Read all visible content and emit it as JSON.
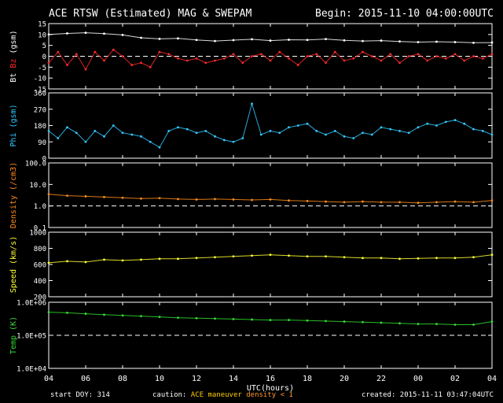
{
  "header": {
    "title": "ACE RTSW (Estimated) MAG & SWEPAM",
    "begin": "Begin: 2015-11-10 04:00:00UTC"
  },
  "footer": {
    "start_doy": "start DOY: 314",
    "caution_label": "caution:",
    "caution_maneuver": "ACE maneuver",
    "caution_density": "density < 1",
    "created": "created: 2015-11-11 03:47:04UTC"
  },
  "colors": {
    "bt": "#ffffff",
    "bz": "#ff2a2a",
    "phi": "#33c8ff",
    "density": "#ff8c1a",
    "speed": "#ffff33",
    "temp": "#33dd33",
    "frame": "#ffffff",
    "background": "#000000"
  },
  "chart_data": {
    "type": "scatter",
    "x": {
      "label": "UTC(hours)",
      "ticks": [
        "04",
        "06",
        "08",
        "10",
        "12",
        "14",
        "16",
        "18",
        "20",
        "22",
        "00",
        "02",
        "04"
      ],
      "range_hours": [
        0,
        24
      ]
    },
    "panels": [
      {
        "id": "mag",
        "ylabel_parts": [
          "Bt",
          "Bz",
          "(gsm)"
        ],
        "ylim": [
          -15,
          15
        ],
        "yticks": [
          "15",
          "10",
          "5",
          "0",
          "-5",
          "-10",
          "-15"
        ],
        "reference_line": 0,
        "series": [
          {
            "name": "Bt",
            "color_key": "bt",
            "points": [
              [
                0,
                10
              ],
              [
                1,
                10.5
              ],
              [
                2,
                10.8
              ],
              [
                3,
                10.4
              ],
              [
                4,
                9.8
              ],
              [
                5,
                8.5
              ],
              [
                6,
                8
              ],
              [
                7,
                8.2
              ],
              [
                8,
                7.5
              ],
              [
                9,
                7
              ],
              [
                10,
                7.4
              ],
              [
                11,
                7.8
              ],
              [
                12,
                7.2
              ],
              [
                13,
                7.6
              ],
              [
                14,
                7.5
              ],
              [
                15,
                7.9
              ],
              [
                16,
                7.3
              ],
              [
                17,
                7
              ],
              [
                18,
                7.2
              ],
              [
                19,
                6.8
              ],
              [
                20,
                6.5
              ],
              [
                21,
                6.7
              ],
              [
                22,
                6.5
              ],
              [
                23,
                6.2
              ],
              [
                24,
                6.3
              ]
            ]
          },
          {
            "name": "Bz",
            "color_key": "bz",
            "points": [
              [
                0,
                -3
              ],
              [
                0.5,
                2
              ],
              [
                1,
                -4
              ],
              [
                1.5,
                1
              ],
              [
                2,
                -6
              ],
              [
                2.5,
                2
              ],
              [
                3,
                -2
              ],
              [
                3.5,
                3
              ],
              [
                4,
                0
              ],
              [
                4.5,
                -4
              ],
              [
                5,
                -3
              ],
              [
                5.5,
                -5
              ],
              [
                6,
                2
              ],
              [
                6.5,
                1
              ],
              [
                7,
                -1
              ],
              [
                7.5,
                -2
              ],
              [
                8,
                -1
              ],
              [
                8.5,
                -3
              ],
              [
                9,
                -2
              ],
              [
                9.5,
                -1
              ],
              [
                10,
                1
              ],
              [
                10.5,
                -3
              ],
              [
                11,
                0
              ],
              [
                11.5,
                1
              ],
              [
                12,
                -2
              ],
              [
                12.5,
                2
              ],
              [
                13,
                -1
              ],
              [
                13.5,
                -4
              ],
              [
                14,
                0
              ],
              [
                14.5,
                1
              ],
              [
                15,
                -3
              ],
              [
                15.5,
                2
              ],
              [
                16,
                -2
              ],
              [
                16.5,
                -1
              ],
              [
                17,
                2
              ],
              [
                17.5,
                0
              ],
              [
                18,
                -2
              ],
              [
                18.5,
                1
              ],
              [
                19,
                -3
              ],
              [
                19.5,
                0
              ],
              [
                20,
                1
              ],
              [
                20.5,
                -2
              ],
              [
                21,
                0
              ],
              [
                21.5,
                -1
              ],
              [
                22,
                1
              ],
              [
                22.5,
                -2
              ],
              [
                23,
                0
              ],
              [
                23.5,
                -1
              ],
              [
                24,
                1
              ]
            ]
          }
        ]
      },
      {
        "id": "phi",
        "ylabel_parts": [
          "Phi (gsm)"
        ],
        "ylim": [
          0,
          360
        ],
        "yticks": [
          "360",
          "270",
          "180",
          "90",
          "0"
        ],
        "series": [
          {
            "name": "Phi",
            "color_key": "phi",
            "points": [
              [
                0,
                150
              ],
              [
                0.5,
                110
              ],
              [
                1,
                170
              ],
              [
                1.5,
                140
              ],
              [
                2,
                90
              ],
              [
                2.5,
                150
              ],
              [
                3,
                120
              ],
              [
                3.5,
                180
              ],
              [
                4,
                140
              ],
              [
                4.5,
                130
              ],
              [
                5,
                120
              ],
              [
                5.5,
                90
              ],
              [
                6,
                60
              ],
              [
                6.5,
                150
              ],
              [
                7,
                170
              ],
              [
                7.5,
                160
              ],
              [
                8,
                140
              ],
              [
                8.5,
                150
              ],
              [
                9,
                120
              ],
              [
                9.5,
                100
              ],
              [
                10,
                90
              ],
              [
                10.5,
                110
              ],
              [
                11,
                300
              ],
              [
                11.5,
                130
              ],
              [
                12,
                150
              ],
              [
                12.5,
                140
              ],
              [
                13,
                170
              ],
              [
                13.5,
                180
              ],
              [
                14,
                190
              ],
              [
                14.5,
                150
              ],
              [
                15,
                130
              ],
              [
                15.5,
                150
              ],
              [
                16,
                120
              ],
              [
                16.5,
                110
              ],
              [
                17,
                140
              ],
              [
                17.5,
                130
              ],
              [
                18,
                170
              ],
              [
                18.5,
                160
              ],
              [
                19,
                150
              ],
              [
                19.5,
                140
              ],
              [
                20,
                170
              ],
              [
                20.5,
                190
              ],
              [
                21,
                180
              ],
              [
                21.5,
                200
              ],
              [
                22,
                210
              ],
              [
                22.5,
                190
              ],
              [
                23,
                160
              ],
              [
                23.5,
                150
              ],
              [
                24,
                130
              ]
            ]
          }
        ]
      },
      {
        "id": "density",
        "ylabel_parts": [
          "Density (/cm3)"
        ],
        "scale": "log",
        "ylim": [
          0.1,
          100
        ],
        "yticks": [
          "100.0",
          "10.0",
          "1.0",
          "0.1"
        ],
        "reference_line": 1,
        "series": [
          {
            "name": "Density",
            "color_key": "density",
            "points": [
              [
                0,
                3.5
              ],
              [
                1,
                3.0
              ],
              [
                2,
                2.8
              ],
              [
                3,
                2.6
              ],
              [
                4,
                2.4
              ],
              [
                5,
                2.2
              ],
              [
                6,
                2.3
              ],
              [
                7,
                2.1
              ],
              [
                8,
                2.0
              ],
              [
                9,
                2.1
              ],
              [
                10,
                2.0
              ],
              [
                11,
                1.9
              ],
              [
                12,
                2.0
              ],
              [
                13,
                1.8
              ],
              [
                14,
                1.7
              ],
              [
                15,
                1.6
              ],
              [
                16,
                1.5
              ],
              [
                17,
                1.6
              ],
              [
                18,
                1.5
              ],
              [
                19,
                1.5
              ],
              [
                20,
                1.4
              ],
              [
                21,
                1.5
              ],
              [
                22,
                1.6
              ],
              [
                23,
                1.5
              ],
              [
                24,
                1.8
              ]
            ]
          }
        ]
      },
      {
        "id": "speed",
        "ylabel_parts": [
          "Speed (km/s)"
        ],
        "ylim": [
          200,
          1000
        ],
        "yticks": [
          "1000",
          "800",
          "600",
          "400",
          "200"
        ],
        "series": [
          {
            "name": "Speed",
            "color_key": "speed",
            "points": [
              [
                0,
                620
              ],
              [
                1,
                640
              ],
              [
                2,
                630
              ],
              [
                3,
                660
              ],
              [
                4,
                650
              ],
              [
                5,
                660
              ],
              [
                6,
                670
              ],
              [
                7,
                670
              ],
              [
                8,
                680
              ],
              [
                9,
                690
              ],
              [
                10,
                700
              ],
              [
                11,
                710
              ],
              [
                12,
                720
              ],
              [
                13,
                710
              ],
              [
                14,
                700
              ],
              [
                15,
                700
              ],
              [
                16,
                690
              ],
              [
                17,
                680
              ],
              [
                18,
                680
              ],
              [
                19,
                670
              ],
              [
                20,
                675
              ],
              [
                21,
                680
              ],
              [
                22,
                680
              ],
              [
                23,
                690
              ],
              [
                24,
                720
              ]
            ]
          }
        ]
      },
      {
        "id": "temp",
        "ylabel_parts": [
          "Temp (K)"
        ],
        "scale": "log",
        "ylim": [
          10000,
          1000000
        ],
        "yticks": [
          "1.0E+06",
          "1.0E+05",
          "1.0E+04"
        ],
        "reference_line": 100000,
        "series": [
          {
            "name": "Temp",
            "color_key": "temp",
            "points": [
              [
                0,
                500000
              ],
              [
                1,
                480000
              ],
              [
                2,
                450000
              ],
              [
                3,
                420000
              ],
              [
                4,
                400000
              ],
              [
                5,
                380000
              ],
              [
                6,
                360000
              ],
              [
                7,
                340000
              ],
              [
                8,
                330000
              ],
              [
                9,
                320000
              ],
              [
                10,
                310000
              ],
              [
                11,
                300000
              ],
              [
                12,
                290000
              ],
              [
                13,
                290000
              ],
              [
                14,
                280000
              ],
              [
                15,
                270000
              ],
              [
                16,
                260000
              ],
              [
                17,
                250000
              ],
              [
                18,
                240000
              ],
              [
                19,
                230000
              ],
              [
                20,
                220000
              ],
              [
                21,
                220000
              ],
              [
                22,
                210000
              ],
              [
                23,
                210000
              ],
              [
                24,
                260000
              ]
            ]
          }
        ]
      }
    ]
  }
}
